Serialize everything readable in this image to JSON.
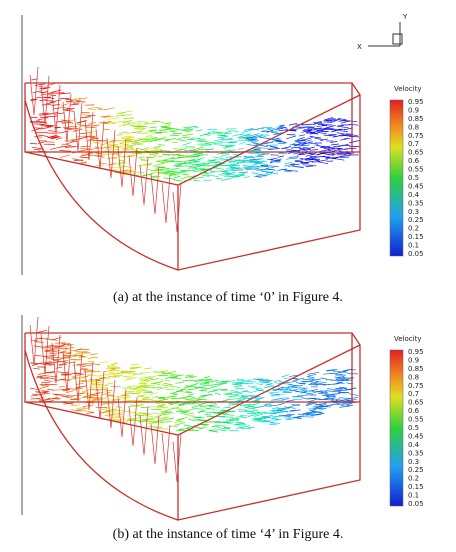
{
  "axes": {
    "x": "X",
    "y": "Y"
  },
  "panels": [
    {
      "legend_title": "Velocity",
      "legend_labels": [
        "0.95",
        "0.9",
        "0.85",
        "0.8",
        "0.75",
        "0.7",
        "0.65",
        "0.6",
        "0.55",
        "0.5",
        "0.45",
        "0.4",
        "0.35",
        "0.3",
        "0.25",
        "0.2",
        "0.15",
        "0.1",
        "0.05"
      ],
      "caption": "(a)  at  the  instance  of  time  ‘0’  in  Figure 4."
    },
    {
      "legend_title": "Velocity",
      "legend_labels": [
        "0.95",
        "0.9",
        "0.85",
        "0.8",
        "0.75",
        "0.7",
        "0.65",
        "0.6",
        "0.55",
        "0.5",
        "0.45",
        "0.4",
        "0.35",
        "0.3",
        "0.25",
        "0.2",
        "0.15",
        "0.1",
        "0.05"
      ],
      "caption": "(b)  at  the  instance  of  time  ‘4’  in  Figure 4."
    }
  ]
}
